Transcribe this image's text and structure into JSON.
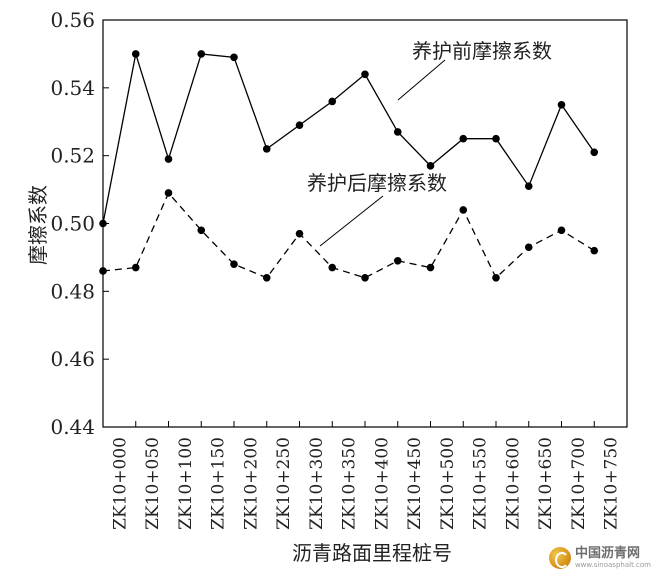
{
  "chart_data": {
    "type": "line",
    "xlabel": "沥青路面里程桩号",
    "ylabel": "摩擦系数",
    "ylim": [
      0.44,
      0.56
    ],
    "yticks": [
      0.44,
      0.46,
      0.48,
      0.5,
      0.52,
      0.54,
      0.56
    ],
    "ytick_labels": [
      "0.44",
      "0.46",
      "0.48",
      "0.50",
      "0.52",
      "0.54",
      "0.56"
    ],
    "categories": [
      "ZK10+000",
      "ZK10+050",
      "ZK10+100",
      "ZK10+150",
      "ZK10+200",
      "ZK10+250",
      "ZK10+300",
      "ZK10+350",
      "ZK10+400",
      "ZK10+450",
      "ZK10+500",
      "ZK10+550",
      "ZK10+600",
      "ZK10+650",
      "ZK10+700",
      "ZK10+750"
    ],
    "series": [
      {
        "name": "养护前摩擦系数",
        "style": "solid",
        "color": "#000000",
        "values": [
          0.5,
          0.55,
          0.519,
          0.55,
          0.549,
          0.522,
          0.529,
          0.536,
          0.544,
          0.527,
          0.517,
          0.525,
          0.525,
          0.511,
          0.535,
          0.521
        ]
      },
      {
        "name": "养护后摩擦系数",
        "style": "dashed",
        "color": "#000000",
        "values": [
          0.486,
          0.487,
          0.509,
          0.498,
          0.488,
          0.484,
          0.497,
          0.487,
          0.484,
          0.489,
          0.487,
          0.504,
          0.484,
          0.493,
          0.498,
          0.492
        ]
      }
    ],
    "annotations": [
      {
        "text": "养护前摩擦系数",
        "series": 0
      },
      {
        "text": "养护后摩擦系数",
        "series": 1
      }
    ],
    "grid": false
  },
  "watermark": {
    "main": "中国沥青网",
    "sub": "www.sinoasphalt.com"
  }
}
